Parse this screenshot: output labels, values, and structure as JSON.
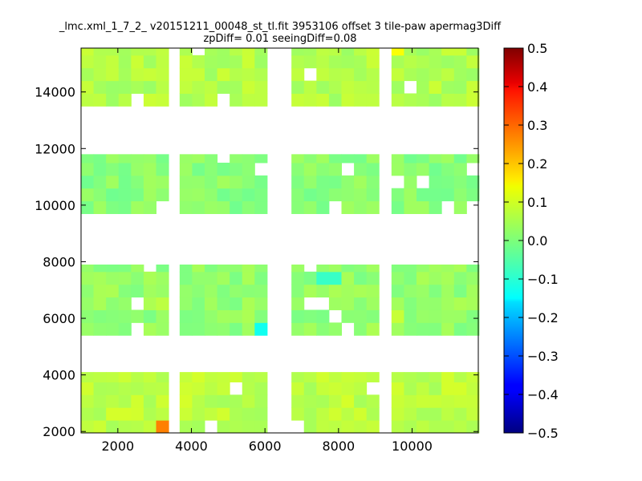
{
  "chart_data": {
    "type": "heatmap",
    "title": "_lmc.xml_1_7_2_ v20151211_00048_st_tl.fit 3953106 offset 3 tile-paw apermag3Diff",
    "subtitle": "zpDiff= 0.01 seeingDiff=0.08",
    "xlabel": "",
    "ylabel": "",
    "xlim": [
      1000,
      11800
    ],
    "ylim": [
      1950,
      15550
    ],
    "x_ticks": [
      "2000",
      "4000",
      "6000",
      "8000",
      "10000"
    ],
    "x_tick_values": [
      2000,
      4000,
      6000,
      8000,
      10000
    ],
    "y_ticks": [
      "2000",
      "4000",
      "6000",
      "8000",
      "10000",
      "12000",
      "14000"
    ],
    "y_tick_values": [
      2000,
      4000,
      6000,
      8000,
      10000,
      12000,
      14000
    ],
    "colorbar": {
      "range": [
        -0.5,
        0.5
      ],
      "colormap": "jet",
      "ticks": [
        "0.5",
        "0.4",
        "0.3",
        "0.2",
        "0.1",
        "0.0",
        "−0.1",
        "−0.2",
        "−0.3",
        "−0.4",
        "−0.5"
      ],
      "tick_values": [
        0.5,
        0.4,
        0.3,
        0.2,
        0.1,
        0.0,
        -0.1,
        -0.2,
        -0.3,
        -0.4,
        -0.5
      ]
    },
    "grid": false,
    "cell_size": [
      340,
      450
    ],
    "column_groups": [
      {
        "x0": 1000,
        "x1": 3380
      },
      {
        "x0": 3680,
        "x1": 6060
      },
      {
        "x0": 6720,
        "x1": 9100
      },
      {
        "x0": 9440,
        "x1": 11820
      }
    ],
    "row_bands": [
      {
        "y0": 1950,
        "y1": 4100,
        "typical": 0.06
      },
      {
        "y0": 5400,
        "y1": 7900,
        "typical": 0.02
      },
      {
        "y0": 9700,
        "y1": 11800,
        "typical": 0.01
      },
      {
        "y0": 13500,
        "y1": 15550,
        "typical": 0.05
      }
    ],
    "notable_cells": [
      {
        "x": 3170,
        "y": 2175,
        "value": 0.25
      },
      {
        "x": 5850,
        "y": 5625,
        "value": -0.11
      },
      {
        "x": 7740,
        "y": 7275,
        "value": -0.07
      },
      {
        "x": 9610,
        "y": 15325,
        "value": 0.12
      },
      {
        "x": 9610,
        "y": 6075,
        "value": 0.07
      },
      {
        "x": 3170,
        "y": 6525,
        "value": 0.06
      }
    ]
  }
}
